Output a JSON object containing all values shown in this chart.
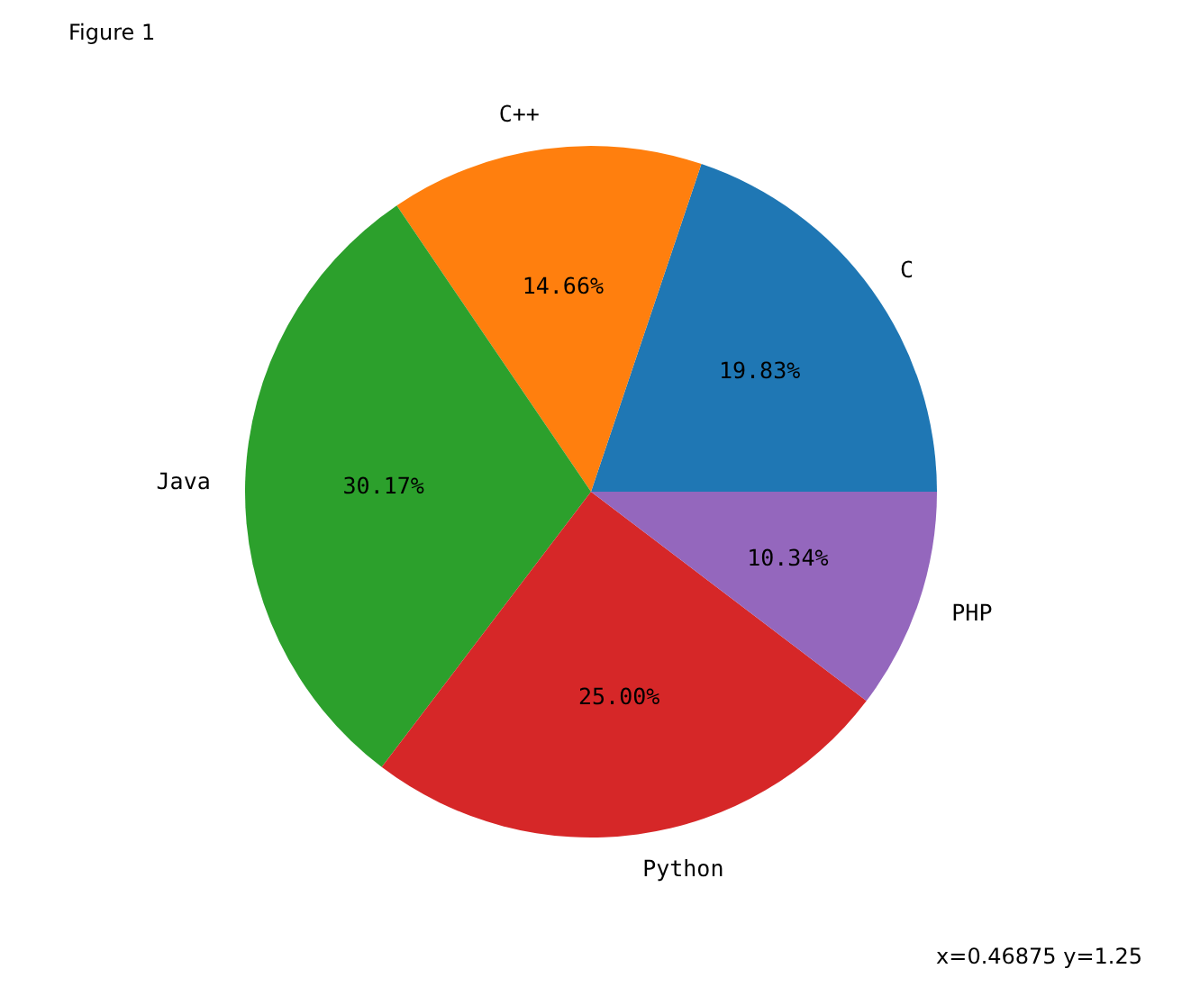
{
  "chart_data": {
    "type": "pie",
    "title": "Figure 1",
    "categories": [
      "C",
      "C++",
      "Java",
      "Python",
      "PHP"
    ],
    "values": [
      19.83,
      14.66,
      30.17,
      25.0,
      10.34
    ],
    "colors": [
      "#1f77b4",
      "#ff7f0e",
      "#2ca02c",
      "#d62728",
      "#9467bd"
    ],
    "value_labels": [
      "19.83%",
      "14.66%",
      "30.17%",
      "25.00%",
      "10.34%"
    ],
    "annotations": [
      "x=0.46875     y=1.25"
    ]
  }
}
